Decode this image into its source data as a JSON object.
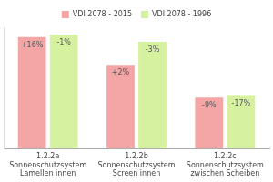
{
  "chart_data": {
    "type": "bar",
    "categories": [
      [
        "1.2.2a",
        "Sonnenschutzsystem",
        "Lamellen innen"
      ],
      [
        "1.2.2b",
        "Sonnenschutzsystem",
        "Screen innen"
      ],
      [
        "1.2.2c",
        "Sonnenschutzsystem",
        "zwischen Scheiben"
      ]
    ],
    "series": [
      {
        "name": "VDI 2078 - 2015",
        "color": "#f4a6a6",
        "values": [
          92,
          69,
          42
        ],
        "annotations": [
          "+16%",
          "+2%",
          "-9%"
        ]
      },
      {
        "name": "VDI 2078 - 1996",
        "color": "#d6f2a0",
        "values": [
          94,
          88,
          44
        ],
        "annotations": [
          "-1%",
          "-3%",
          "-17%"
        ]
      }
    ],
    "ylim": [
      0,
      100
    ],
    "grid": false,
    "legend": "top",
    "tick_labels": "x"
  }
}
